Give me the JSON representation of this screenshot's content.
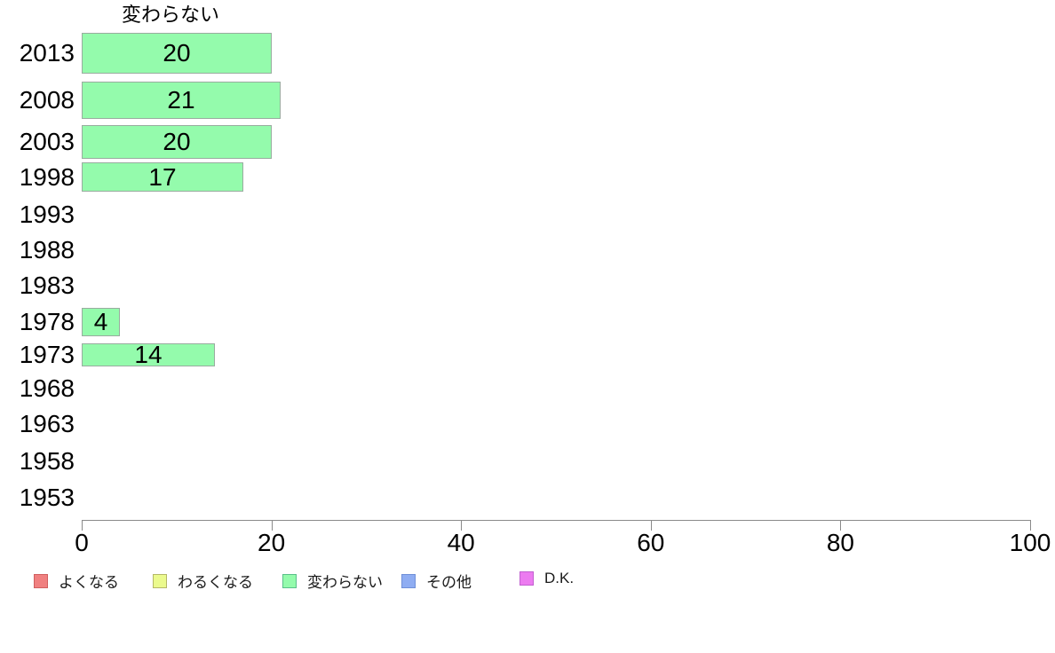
{
  "chart_data": {
    "type": "bar",
    "orientation": "horizontal",
    "title": "変わらない",
    "categories": [
      "2013",
      "2008",
      "2003",
      "1998",
      "1993",
      "1988",
      "1983",
      "1978",
      "1973",
      "1968",
      "1963",
      "1958",
      "1953"
    ],
    "values": [
      20,
      21,
      20,
      17,
      null,
      null,
      null,
      4,
      14,
      null,
      null,
      null,
      null
    ],
    "xlabel": "",
    "ylabel": "",
    "xlim": [
      0,
      100
    ],
    "x_ticks": [
      0,
      20,
      40,
      60,
      80,
      100
    ],
    "grid": "off",
    "bar_fill_color": "#94fbac",
    "bar_border_color": "#99ac9f",
    "legend_position": "bottom",
    "legend": [
      {
        "label": "よくなる",
        "color": "#f08080",
        "border": "#d05f5f"
      },
      {
        "label": "わるくなる",
        "color": "#ebfa8e",
        "border": "#b4b868"
      },
      {
        "label": "変わらない",
        "color": "#94fbac",
        "border": "#5abf8a"
      },
      {
        "label": "その他",
        "color": "#8fadf2",
        "border": "#6f8fd8"
      },
      {
        "label": "D.K.",
        "color": "#ec7bf0",
        "border": "#c25fd0"
      }
    ]
  }
}
